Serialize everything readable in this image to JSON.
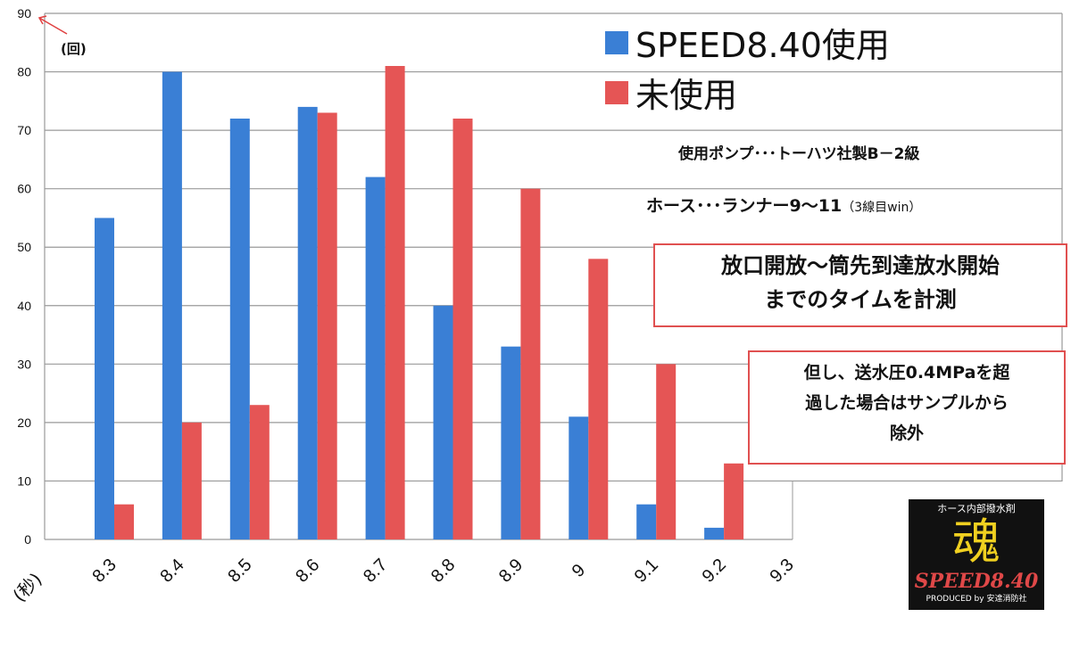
{
  "chart_data": {
    "type": "bar",
    "title": "",
    "xlabel": "(秒)",
    "ylabel": "(回)",
    "ylim": [
      0,
      90
    ],
    "yticks": [
      0,
      10,
      20,
      30,
      40,
      50,
      60,
      70,
      80,
      90
    ],
    "grid": true,
    "legend_position": "top-right",
    "categories": [
      "8.3",
      "8.4",
      "8.5",
      "8.6",
      "8.7",
      "8.8",
      "8.9",
      "9",
      "9.1",
      "9.2",
      "9.3"
    ],
    "series": [
      {
        "name": "SPEED8.40使用",
        "color": "#3a7fd5",
        "values": [
          55,
          80,
          72,
          74,
          62,
          40,
          33,
          21,
          6,
          2,
          0
        ]
      },
      {
        "name": "未使用",
        "color": "#e55555",
        "values": [
          6,
          20,
          23,
          73,
          81,
          72,
          60,
          48,
          30,
          13,
          0
        ]
      }
    ]
  },
  "notes": {
    "pump": "使用ポンプ･･･トーハツ社製B－2級",
    "hose_main": "ホース･･･ランナー9～11",
    "hose_sub": "（3線目win）",
    "measure_line1": "放口開放～筒先到達放水開始",
    "measure_line2": "までのタイムを計測",
    "exclusion_line1": "但し、送水圧0.4MPaを超",
    "exclusion_line2": "過した場合はサンプルから",
    "exclusion_line3": "除外"
  },
  "logo": {
    "top": "ホース内部撥水剤",
    "kanji": "魂",
    "brand": "SPEED8.40",
    "bottom": "PRODUCED by 安達消防社"
  }
}
